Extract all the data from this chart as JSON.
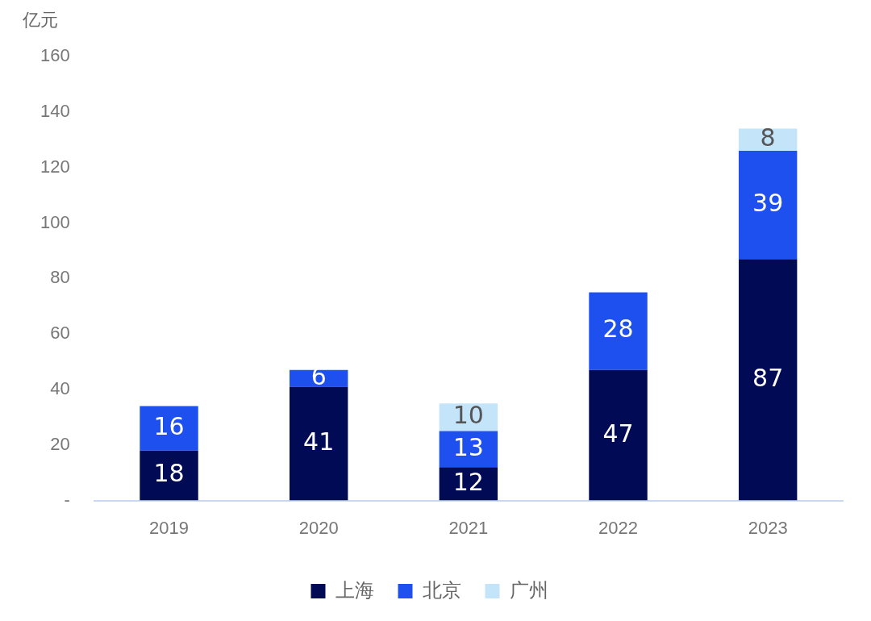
{
  "chart_data": {
    "type": "bar",
    "ylabel": "亿元",
    "stacked": true,
    "categories": [
      "2019",
      "2020",
      "2021",
      "2022",
      "2023"
    ],
    "series": [
      {
        "name": "上海",
        "color": "#000a55",
        "values": [
          18,
          41,
          12,
          47,
          87
        ]
      },
      {
        "name": "北京",
        "color": "#1e50f0",
        "values": [
          16,
          6,
          13,
          28,
          39
        ]
      },
      {
        "name": "广州",
        "color": "#c4e4fa",
        "values": [
          null,
          null,
          10,
          null,
          8
        ]
      }
    ],
    "ylim": [
      0,
      160
    ],
    "yticks": [
      {
        "value": 0,
        "label": "-"
      },
      20,
      40,
      60,
      80,
      100,
      120,
      140,
      160
    ],
    "grid": false,
    "legend": "bottom",
    "data_labels": true
  }
}
